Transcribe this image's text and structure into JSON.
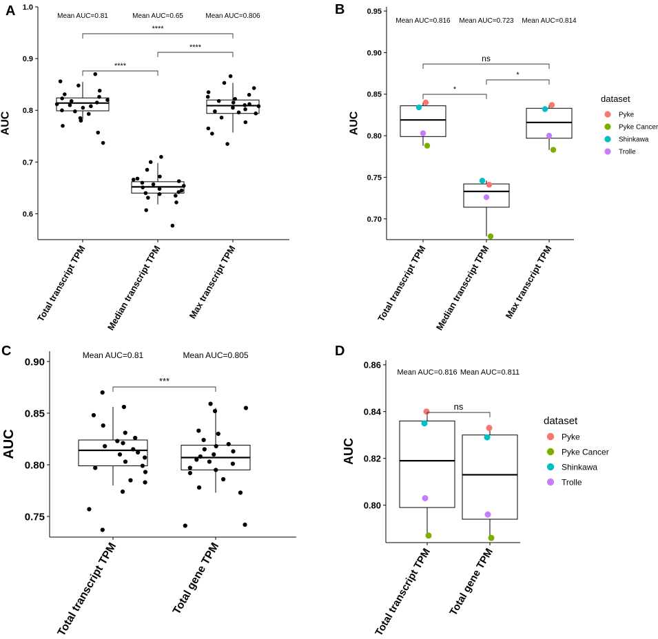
{
  "chart_data": [
    {
      "type": "box",
      "panel_label": "A",
      "ylabel": "AUC",
      "ylim": [
        0.55,
        1.0
      ],
      "yticks": [
        0.6,
        0.7,
        0.8,
        0.9,
        1.0
      ],
      "ytick_labels": [
        "0.6",
        "0.7",
        "0.8",
        "0.9",
        "1.0"
      ],
      "categories": [
        "Total transcript TPM",
        "Median transcript TPM",
        "Max transcript TPM"
      ],
      "means": [
        "Mean AUC=0.81",
        "Mean AUC=0.65",
        "Mean AUC=0.806"
      ],
      "boxes": [
        {
          "q1": 0.799,
          "median": 0.814,
          "q3": 0.824,
          "lo": 0.782,
          "hi": 0.855
        },
        {
          "q1": 0.64,
          "median": 0.652,
          "q3": 0.662,
          "lo": 0.618,
          "hi": 0.698
        },
        {
          "q1": 0.794,
          "median": 0.809,
          "q3": 0.82,
          "lo": 0.757,
          "hi": 0.853
        }
      ],
      "points": [
        [
          0.87,
          0.856,
          0.848,
          0.838,
          0.831,
          0.826,
          0.823,
          0.82,
          0.818,
          0.815,
          0.812,
          0.81,
          0.808,
          0.805,
          0.8,
          0.798,
          0.793,
          0.785,
          0.78,
          0.77,
          0.757,
          0.737
        ],
        [
          0.71,
          0.7,
          0.685,
          0.672,
          0.668,
          0.666,
          0.663,
          0.66,
          0.657,
          0.654,
          0.651,
          0.648,
          0.645,
          0.642,
          0.64,
          0.638,
          0.635,
          0.631,
          0.622,
          0.607,
          0.577
        ],
        [
          0.866,
          0.853,
          0.843,
          0.835,
          0.83,
          0.826,
          0.822,
          0.818,
          0.815,
          0.812,
          0.81,
          0.808,
          0.805,
          0.802,
          0.798,
          0.796,
          0.794,
          0.786,
          0.777,
          0.765,
          0.755,
          0.735
        ]
      ],
      "brackets": [
        {
          "from": 0,
          "to": 1,
          "label": "****"
        },
        {
          "from": 1,
          "to": 2,
          "label": "****"
        },
        {
          "from": 0,
          "to": 2,
          "label": "****"
        }
      ]
    },
    {
      "type": "box",
      "panel_label": "B",
      "ylabel": "AUC",
      "ylim": [
        0.675,
        0.955
      ],
      "yticks": [
        0.7,
        0.75,
        0.8,
        0.85,
        0.9,
        0.95
      ],
      "ytick_labels": [
        "0.70",
        "0.75",
        "0.80",
        "0.85",
        "0.90",
        "0.95"
      ],
      "categories": [
        "Total transcript TPM",
        "Median transcript TPM",
        "Max transcript TPM"
      ],
      "means": [
        "Mean AUC=0.816",
        "Mean AUC=0.723",
        "Mean AUC=0.814"
      ],
      "boxes": [
        {
          "q1": 0.799,
          "median": 0.819,
          "q3": 0.836,
          "lo": 0.788,
          "hi": 0.84
        },
        {
          "q1": 0.714,
          "median": 0.733,
          "q3": 0.742,
          "lo": 0.679,
          "hi": 0.746
        },
        {
          "q1": 0.797,
          "median": 0.816,
          "q3": 0.833,
          "lo": 0.783,
          "hi": 0.837
        }
      ],
      "dataset_points": [
        {
          "Pyke": 0.84,
          "Pyke Cancer": 0.788,
          "Shinkawa": 0.834,
          "Trolle": 0.803
        },
        {
          "Pyke": 0.741,
          "Pyke Cancer": 0.679,
          "Shinkawa": 0.746,
          "Trolle": 0.726
        },
        {
          "Pyke": 0.837,
          "Pyke Cancer": 0.783,
          "Shinkawa": 0.832,
          "Trolle": 0.8
        }
      ],
      "brackets": [
        {
          "from": 0,
          "to": 1,
          "label": "*"
        },
        {
          "from": 1,
          "to": 2,
          "label": "*"
        },
        {
          "from": 0,
          "to": 2,
          "label": "ns"
        }
      ],
      "legend": {
        "title": "dataset",
        "entries": [
          "Pyke",
          "Pyke Cancer",
          "Shinkawa",
          "Trolle"
        ],
        "position": "right"
      }
    },
    {
      "type": "box",
      "panel_label": "C",
      "ylabel": "AUC",
      "ylim": [
        0.73,
        0.91
      ],
      "yticks": [
        0.75,
        0.8,
        0.85,
        0.9
      ],
      "ytick_labels": [
        "0.75",
        "0.80",
        "0.85",
        "0.90"
      ],
      "categories": [
        "Total transcript TPM",
        "Total gene TPM"
      ],
      "means": [
        "Mean AUC=0.81",
        "Mean AUC=0.805"
      ],
      "boxes": [
        {
          "q1": 0.799,
          "median": 0.814,
          "q3": 0.824,
          "lo": 0.78,
          "hi": 0.856
        },
        {
          "q1": 0.795,
          "median": 0.807,
          "q3": 0.819,
          "lo": 0.773,
          "hi": 0.855
        }
      ],
      "points": [
        [
          0.87,
          0.856,
          0.848,
          0.838,
          0.831,
          0.826,
          0.823,
          0.821,
          0.818,
          0.815,
          0.812,
          0.81,
          0.807,
          0.803,
          0.799,
          0.797,
          0.793,
          0.785,
          0.783,
          0.774,
          0.757,
          0.737
        ],
        [
          0.859,
          0.855,
          0.852,
          0.833,
          0.83,
          0.824,
          0.82,
          0.818,
          0.815,
          0.813,
          0.81,
          0.808,
          0.805,
          0.803,
          0.801,
          0.797,
          0.795,
          0.792,
          0.786,
          0.778,
          0.773,
          0.742,
          0.741
        ]
      ],
      "brackets": [
        {
          "from": 0,
          "to": 1,
          "label": "***"
        }
      ]
    },
    {
      "type": "box",
      "panel_label": "D",
      "ylabel": "AUC",
      "ylim": [
        0.784,
        0.862
      ],
      "yticks": [
        0.8,
        0.82,
        0.84,
        0.86
      ],
      "ytick_labels": [
        "0.80",
        "0.82",
        "0.84",
        "0.86"
      ],
      "categories": [
        "Total transcript TPM",
        "Total gene TPM"
      ],
      "means": [
        "Mean AUC=0.816",
        "Mean AUC=0.811"
      ],
      "boxes": [
        {
          "q1": 0.799,
          "median": 0.819,
          "q3": 0.836,
          "lo": 0.787,
          "hi": 0.84
        },
        {
          "q1": 0.794,
          "median": 0.813,
          "q3": 0.83,
          "lo": 0.786,
          "hi": 0.833
        }
      ],
      "dataset_points": [
        {
          "Pyke": 0.84,
          "Pyke Cancer": 0.787,
          "Shinkawa": 0.835,
          "Trolle": 0.803
        },
        {
          "Pyke": 0.833,
          "Pyke Cancer": 0.786,
          "Shinkawa": 0.829,
          "Trolle": 0.796
        }
      ],
      "brackets": [
        {
          "from": 0,
          "to": 1,
          "label": "ns"
        }
      ],
      "legend": {
        "title": "dataset",
        "entries": [
          "Pyke",
          "Pyke Cancer",
          "Shinkawa",
          "Trolle"
        ],
        "position": "right"
      }
    }
  ],
  "colors": {
    "Pyke": "#F8766D",
    "Pyke Cancer": "#7CAE00",
    "Shinkawa": "#00BFC4",
    "Trolle": "#C77CFF"
  }
}
